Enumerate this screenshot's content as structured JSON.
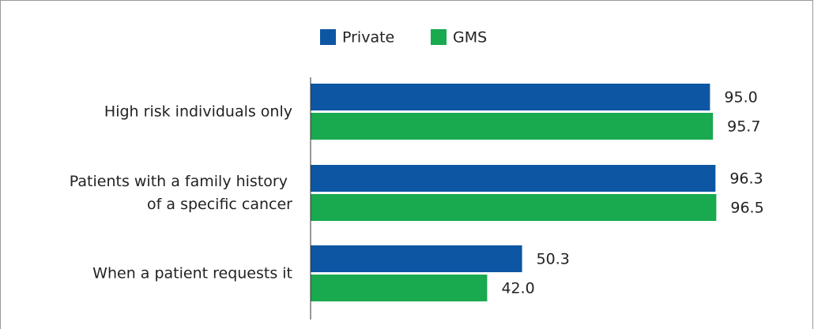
{
  "chart_data": {
    "type": "bar",
    "orientation": "horizontal",
    "categories": [
      "High risk individuals only",
      "Patients with a family history of a specific cancer",
      "When a patient requests it"
    ],
    "series": [
      {
        "name": "Private",
        "color": "#0d56a3",
        "values": [
          95.0,
          96.3,
          50.3
        ],
        "value_labels": [
          "95.0",
          "96.3",
          "50.3"
        ]
      },
      {
        "name": "GMS",
        "color": "#19a94e",
        "values": [
          95.7,
          96.5,
          42.0
        ],
        "value_labels": [
          "95.7",
          "96.5",
          "42.0"
        ]
      }
    ],
    "xlim": [
      0,
      100
    ],
    "legend": "top"
  }
}
